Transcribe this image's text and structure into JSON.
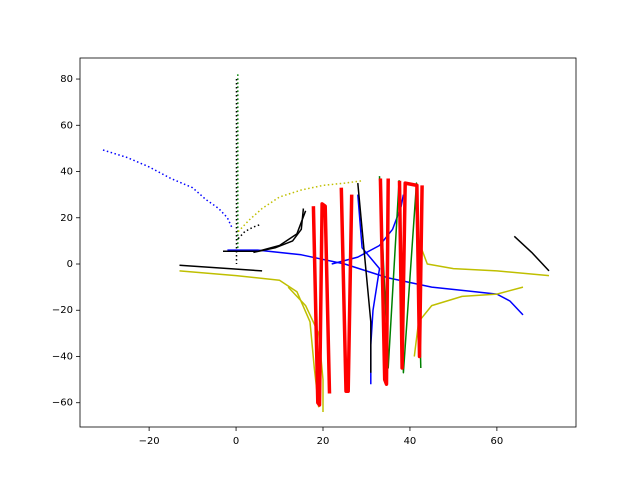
{
  "chart_data": {
    "type": "line",
    "xlim": [
      -35.9,
      78.2
    ],
    "ylim": [
      -70.5,
      89.1
    ],
    "xticks": [
      {
        "value": -20,
        "label": "−20"
      },
      0,
      20,
      40,
      60
    ],
    "yticks": [
      {
        "value": -60,
        "label": "−60"
      },
      {
        "value": -40,
        "label": "−40"
      },
      {
        "value": -20,
        "label": "−20"
      },
      0,
      20,
      40,
      60,
      80
    ],
    "series": [
      {
        "color": "#0000ff",
        "linestyle": "dotted",
        "linewidth": 1.5,
        "x": [
          -30.6,
          -25,
          -20,
          -15,
          -10,
          -7,
          -4,
          -2,
          -1
        ],
        "y": [
          49.3,
          46,
          42,
          37,
          33,
          28,
          24,
          20,
          16
        ]
      },
      {
        "color": "#008000",
        "linestyle": "dotted",
        "linewidth": 1.5,
        "x": [
          0.4,
          0.4
        ],
        "y": [
          82,
          5
        ]
      },
      {
        "color": "#000000",
        "linestyle": "dotted",
        "linewidth": 1.5,
        "x": [
          0.1,
          0.1
        ],
        "y": [
          80,
          0
        ]
      },
      {
        "color": "#bfbf00",
        "linestyle": "dotted",
        "linewidth": 1.5,
        "x": [
          0.5,
          3,
          6,
          10,
          15,
          20,
          25,
          29
        ],
        "y": [
          14,
          19,
          24,
          29,
          32,
          34,
          35,
          36
        ]
      },
      {
        "color": "#000000",
        "linestyle": "dotted",
        "linewidth": 1.5,
        "x": [
          0.5,
          2,
          4,
          5.5
        ],
        "y": [
          11,
          14,
          16,
          17
        ]
      },
      {
        "color": "#000000",
        "linestyle": "solid",
        "linewidth": 1.5,
        "x": [
          -13,
          6
        ],
        "y": [
          -0.5,
          -3
        ]
      },
      {
        "color": "#0000ff",
        "linestyle": "solid",
        "linewidth": 1.5,
        "x": [
          -2,
          5,
          15,
          25,
          35,
          45,
          55,
          60,
          63,
          66
        ],
        "y": [
          6,
          6,
          4,
          0,
          -6,
          -10,
          -12,
          -13,
          -16,
          -22
        ]
      },
      {
        "color": "#0000ff",
        "linestyle": "solid",
        "linewidth": 1.5,
        "x": [
          22,
          28,
          33,
          36,
          38,
          38.5
        ],
        "y": [
          0,
          3,
          8,
          15,
          25,
          30
        ]
      },
      {
        "color": "#0000ff",
        "linestyle": "solid",
        "linewidth": 1.5,
        "x": [
          28,
          29,
          33,
          31.5,
          31,
          31
        ],
        "y": [
          30,
          7,
          -2,
          -20,
          -35,
          -52
        ]
      },
      {
        "color": "#000000",
        "linestyle": "solid",
        "linewidth": 1.5,
        "x": [
          -3,
          5,
          10,
          14,
          16
        ],
        "y": [
          5.5,
          5.5,
          8,
          13,
          23
        ]
      },
      {
        "color": "#000000",
        "linestyle": "solid",
        "linewidth": 1.5,
        "x": [
          4,
          9,
          13,
          15,
          15.5
        ],
        "y": [
          5,
          7,
          10,
          15,
          24
        ]
      },
      {
        "color": "#bfbf00",
        "linestyle": "solid",
        "linewidth": 1.5,
        "x": [
          -13,
          0,
          10,
          14,
          17,
          18,
          19
        ],
        "y": [
          -3,
          -5,
          -7,
          -12,
          -25,
          -45,
          -62
        ]
      },
      {
        "color": "#bfbf00",
        "linestyle": "solid",
        "linewidth": 1.5,
        "x": [
          12,
          16,
          19,
          20,
          20
        ],
        "y": [
          -10,
          -18,
          -30,
          -50,
          -64
        ]
      },
      {
        "color": "#bfbf00",
        "linestyle": "solid",
        "linewidth": 1.5,
        "x": [
          42,
          44,
          50,
          60,
          72
        ],
        "y": [
          10,
          0,
          -2,
          -3,
          -5
        ]
      },
      {
        "color": "#bfbf00",
        "linestyle": "solid",
        "linewidth": 1.5,
        "x": [
          41,
          42,
          45,
          52,
          60,
          66
        ],
        "y": [
          -40,
          -25,
          -18,
          -14,
          -13,
          -10
        ]
      },
      {
        "color": "#000000",
        "linestyle": "solid",
        "linewidth": 1.5,
        "x": [
          64,
          68,
          72
        ],
        "y": [
          12,
          5,
          -3
        ]
      },
      {
        "color": "#000000",
        "linestyle": "solid",
        "linewidth": 1.5,
        "x": [
          28,
          29,
          31,
          31
        ],
        "y": [
          35,
          15,
          -25,
          -47
        ]
      },
      {
        "color": "#008000",
        "linestyle": "solid",
        "linewidth": 1.5,
        "x": [
          33,
          35,
          37.5,
          38.5,
          41.5,
          42.5
        ],
        "y": [
          38,
          -45,
          36,
          -47,
          35,
          -45
        ]
      },
      {
        "color": "#ff0000",
        "linestyle": "solid",
        "linewidth": 3.5,
        "x": [
          17.8,
          18.8,
          19.2,
          19.8,
          20.5,
          21.5
        ],
        "y": [
          25,
          -60,
          -61,
          26,
          25,
          -56
        ]
      },
      {
        "color": "#ff0000",
        "linestyle": "solid",
        "linewidth": 3.5,
        "x": [
          24.2,
          25.3,
          25.8,
          26.6
        ],
        "y": [
          33,
          -55,
          -55,
          30
        ]
      },
      {
        "color": "#ff0000",
        "linestyle": "solid",
        "linewidth": 3.5,
        "x": [
          33.2,
          34.2,
          34.6,
          35
        ],
        "y": [
          37,
          -50,
          -52,
          37
        ]
      },
      {
        "color": "#ff0000",
        "linestyle": "solid",
        "linewidth": 3.5,
        "x": [
          37.6,
          38.2,
          38.9,
          41.6,
          42.2,
          42.8
        ],
        "y": [
          36,
          -45,
          35,
          34,
          -40,
          34
        ]
      }
    ]
  }
}
